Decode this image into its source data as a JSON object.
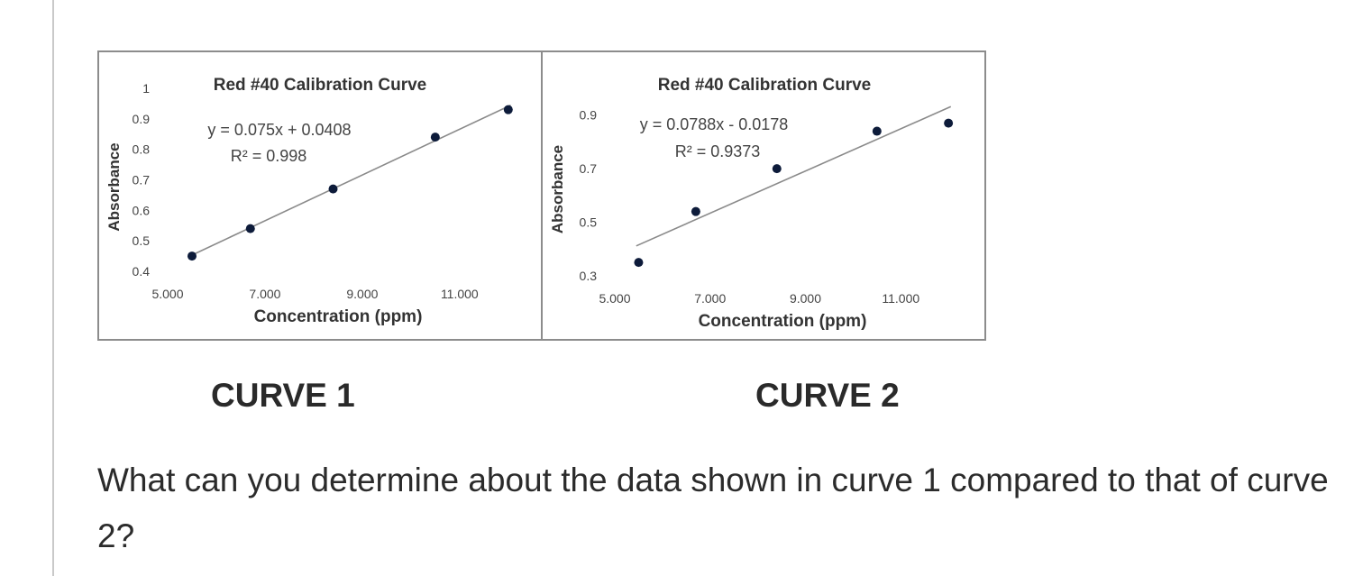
{
  "chart_data": [
    {
      "type": "scatter",
      "title": "Red #40 Calibration Curve",
      "xlabel": "Concentration (ppm)",
      "ylabel": "Absorbance",
      "xlim": [
        5.0,
        12.3
      ],
      "ylim": [
        0.4,
        1.0
      ],
      "x_ticks": [
        5.0,
        7.0,
        9.0,
        11.0
      ],
      "x_tick_labels": [
        "5.000",
        "7.000",
        "9.000",
        "11.000"
      ],
      "y_ticks": [
        0.4,
        0.5,
        0.6,
        0.7,
        0.8,
        0.9,
        1.0
      ],
      "y_tick_labels": [
        "0.4",
        "0.5",
        "0.6",
        "0.7",
        "0.8",
        "0.9",
        "1"
      ],
      "grid": false,
      "x": [
        5.5,
        6.7,
        8.4,
        10.5,
        12.0
      ],
      "y": [
        0.45,
        0.54,
        0.67,
        0.84,
        0.93
      ],
      "trendline": {
        "slope": 0.075,
        "intercept": 0.0408
      },
      "equation": "y = 0.075x + 0.0408",
      "r_squared": "R² = 0.998"
    },
    {
      "type": "scatter",
      "title": "Red #40 Calibration Curve",
      "xlabel": "Concentration (ppm)",
      "ylabel": "Absorbance",
      "xlim": [
        5.0,
        12.3
      ],
      "ylim": [
        0.3,
        1.0
      ],
      "x_ticks": [
        5.0,
        7.0,
        9.0,
        11.0
      ],
      "x_tick_labels": [
        "5.000",
        "7.000",
        "9.000",
        "11.000"
      ],
      "y_ticks": [
        0.3,
        0.5,
        0.7,
        0.9
      ],
      "y_tick_labels": [
        "0.3",
        "0.5",
        "0.7",
        "0.9"
      ],
      "grid": false,
      "x": [
        5.5,
        6.7,
        8.4,
        10.5,
        12.0
      ],
      "y": [
        0.35,
        0.54,
        0.7,
        0.84,
        0.87
      ],
      "trendline": {
        "slope": 0.0788,
        "intercept": -0.0178
      },
      "equation": "y = 0.0788x - 0.0178",
      "r_squared": "R² = 0.9373"
    }
  ],
  "captions": [
    "CURVE 1",
    "CURVE 2"
  ],
  "question": "What can you determine about the data shown in curve 1 compared to that of curve 2?"
}
